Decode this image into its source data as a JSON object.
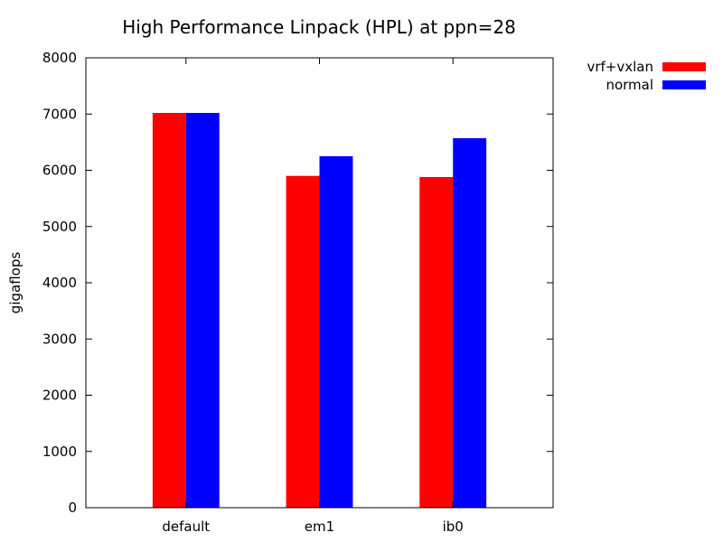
{
  "chart_data": {
    "type": "bar",
    "title": "High Performance Linpack (HPL) at ppn=28",
    "xlabel": "",
    "ylabel": "gigaflops",
    "categories": [
      "default",
      "em1",
      "ib0"
    ],
    "series": [
      {
        "name": "vrf+vxlan",
        "color": "#ff0000",
        "values": [
          7020,
          5900,
          5880
        ]
      },
      {
        "name": "normal",
        "color": "#0000ff",
        "values": [
          7020,
          6250,
          6570
        ]
      }
    ],
    "ylim": [
      0,
      8000
    ],
    "yticks": [
      0,
      1000,
      2000,
      3000,
      4000,
      5000,
      6000,
      7000,
      8000
    ],
    "grid": false,
    "legend_position": "top-right outside"
  }
}
